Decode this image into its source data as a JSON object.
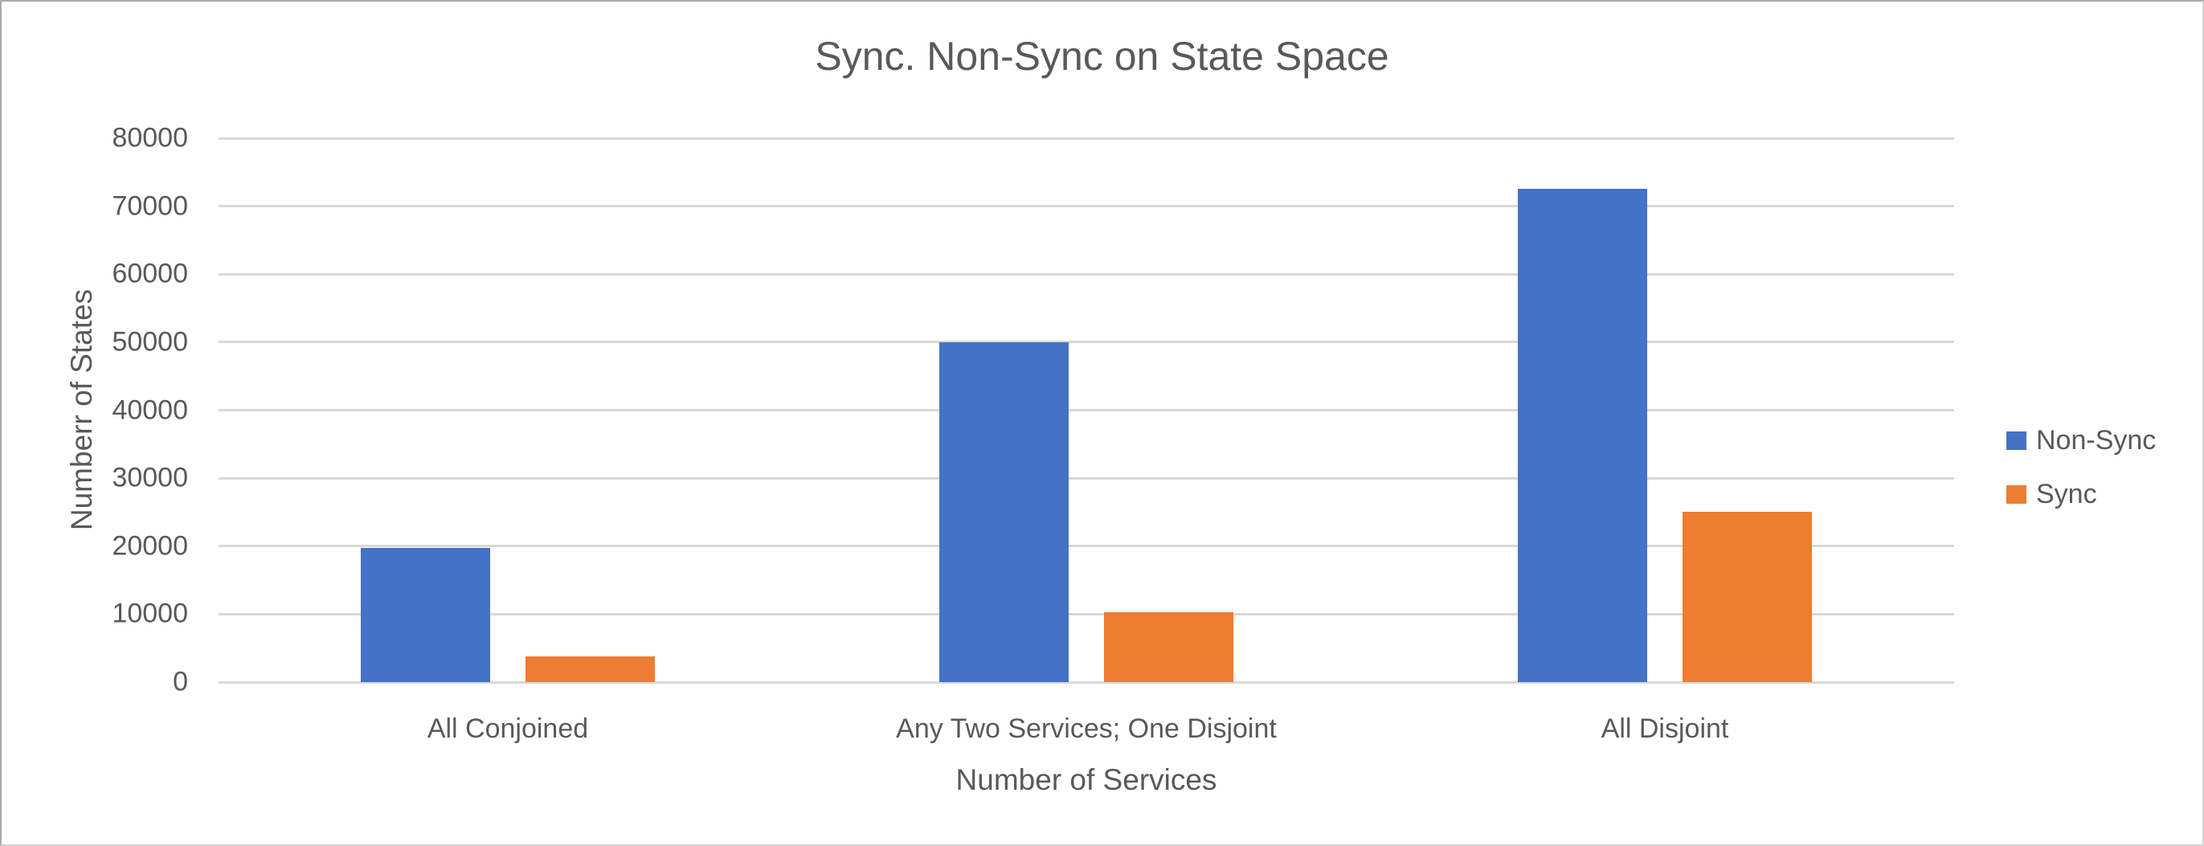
{
  "chart_data": {
    "type": "bar",
    "title": "Sync. Non-Sync on State Space",
    "xlabel": "Number of Services",
    "ylabel": "Numberr of States",
    "categories": [
      "All Conjoined",
      "Any Two Services; One Disjoint",
      "All Disjoint"
    ],
    "series": [
      {
        "name": "Non-Sync",
        "color": "#4472C4",
        "values": [
          19700,
          50000,
          72500
        ]
      },
      {
        "name": "Sync",
        "color": "#ED7D31",
        "values": [
          3800,
          10300,
          25100
        ]
      }
    ],
    "ylim": [
      0,
      80000
    ],
    "ytick_step": 10000,
    "grid": true,
    "legend_position": "right"
  },
  "colors": {
    "non_sync": "#4472C4",
    "sync": "#ED7D31",
    "text": "#595959",
    "gridline": "#D9D9D9",
    "background": "#FFFFFF"
  }
}
